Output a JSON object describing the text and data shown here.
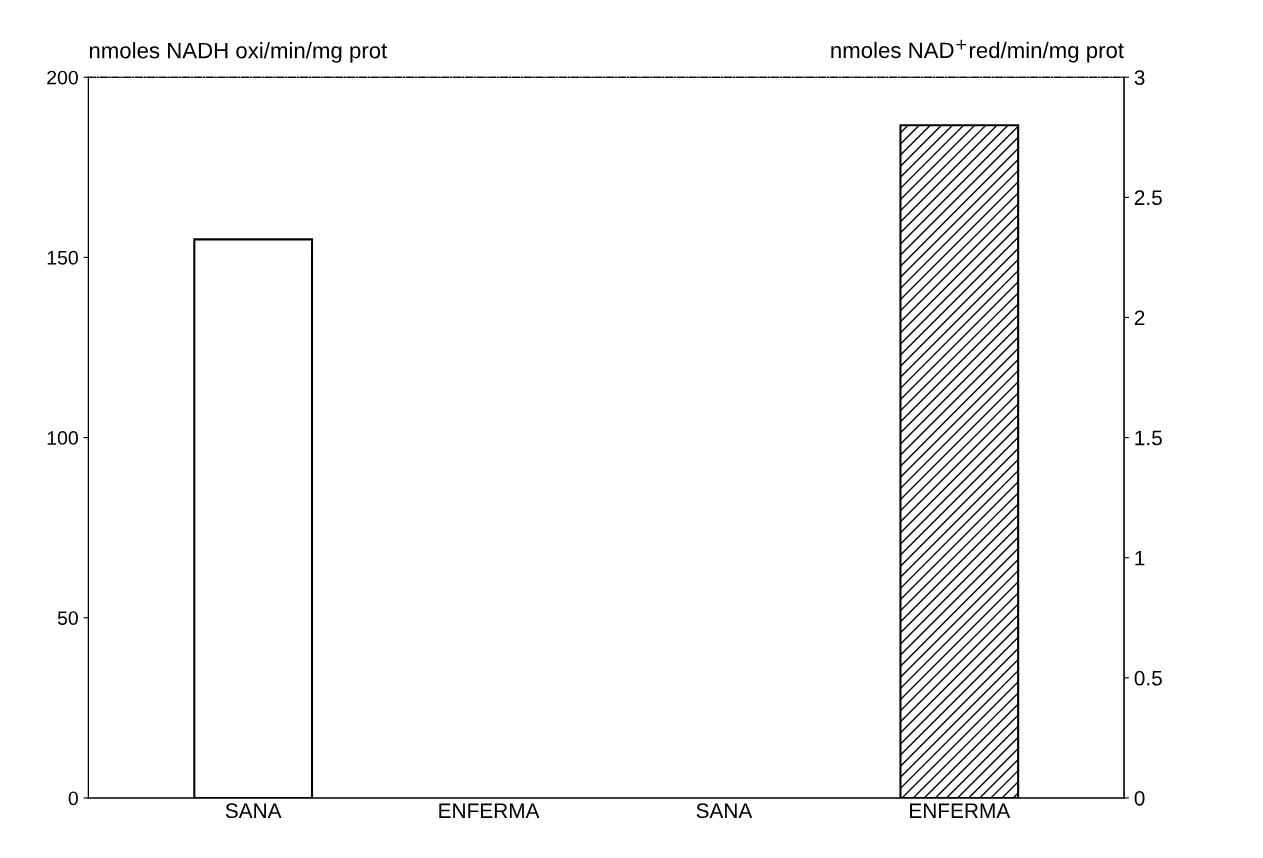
{
  "chart_data": {
    "type": "bar",
    "ylabel": "nmoles NADH oxi/min/mg prot",
    "y2label": "nmoles NAD$^{+}$red/min/mg prot",
    "categories": [
      "SANA",
      "ENFERMA",
      "SANA",
      "ENFERMA"
    ],
    "series": [
      {
        "color": "#000000",
        "values": [
          155,
          null,
          null,
          null
        ]
      },
      {
        "color": "#000000",
        "axis": "y2",
        "values": [
          null,
          null,
          null,
          2.8
        ]
      }
    ],
    "ylim": [
      0,
      200
    ],
    "yticks": [
      0,
      50,
      100,
      150,
      200
    ],
    "y2lim": [
      0,
      3
    ],
    "y2ticks": [
      0,
      0.5,
      1,
      1.5,
      2,
      2.5,
      3
    ],
    "grid": false,
    "legend": false
  }
}
